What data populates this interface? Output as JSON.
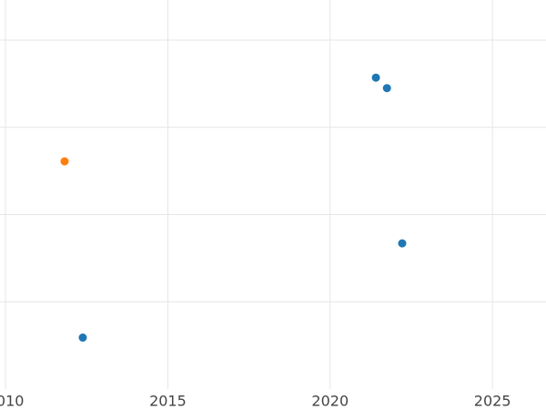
{
  "chart_data": {
    "type": "scatter",
    "series": [
      {
        "color": "#1f77b4",
        "x": [
          2021.41,
          2021.75,
          2022.22,
          2012.38
        ],
        "y": [
          3.57,
          3.45,
          1.67,
          0.59
        ]
      },
      {
        "color": "#ff7f0e",
        "x": [
          2011.82
        ],
        "y": [
          2.61
        ]
      }
    ],
    "xlim": [
      2009.83,
      2026.65
    ],
    "xticks": [
      2010,
      2015,
      2020,
      2025
    ],
    "ylim": [
      0,
      4.46
    ],
    "yticks": [
      1,
      2,
      3,
      4
    ],
    "ytick_labels": false,
    "grid": true
  }
}
